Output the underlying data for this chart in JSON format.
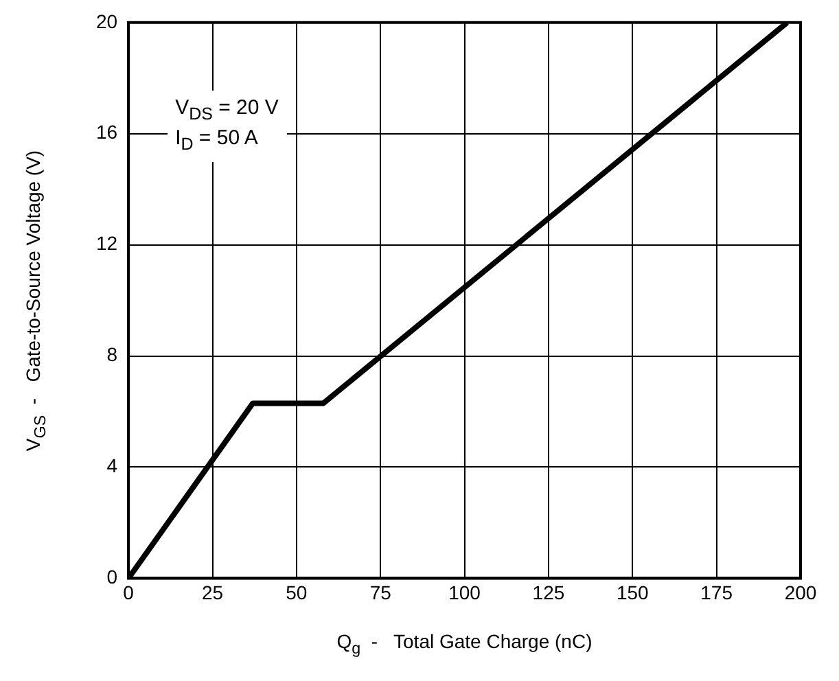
{
  "chart_data": {
    "type": "line",
    "xlabel": "Q$_{g}$  -   Total Gate Charge (nC)",
    "ylabel": "V$_{GS}$  -   Gate-to-Source Voltage (V)",
    "annotations": [
      "V$_{DS}$ = 20 V",
      "I$_{D}$ = 50 A"
    ],
    "x": [
      0,
      37,
      58,
      196
    ],
    "series": [
      {
        "color": "#000000",
        "values": [
          0,
          6.3,
          6.3,
          20
        ]
      }
    ],
    "xlim": [
      0,
      200
    ],
    "xticks": [
      0,
      25,
      50,
      75,
      100,
      125,
      150,
      175,
      200
    ],
    "ylim": [
      0,
      20
    ],
    "yticks": [
      0,
      4,
      8,
      12,
      16,
      20
    ],
    "grid": true,
    "legend": false,
    "marker": "none",
    "line_style": "solid"
  }
}
